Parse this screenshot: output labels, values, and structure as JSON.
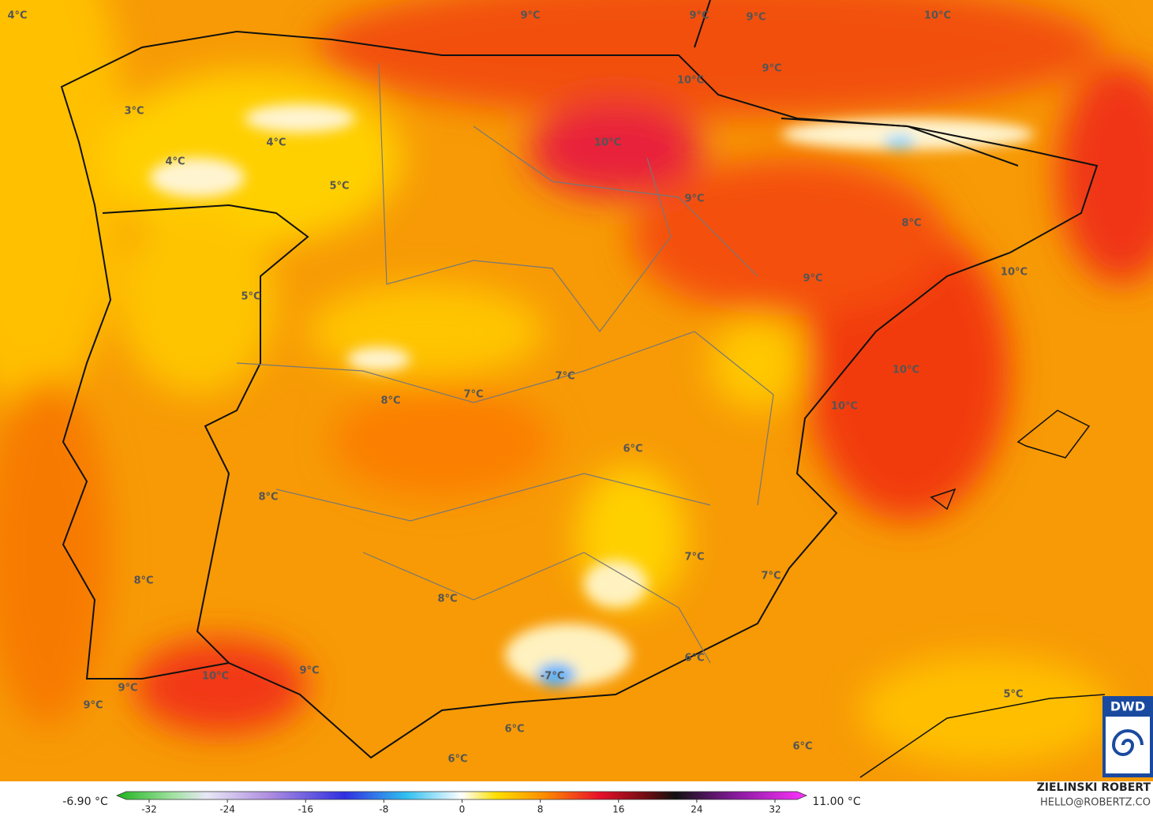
{
  "map": {
    "labels": [
      "4°C",
      "9°C",
      "9°C",
      "9°C",
      "10°C",
      "9°C",
      "10°C",
      "3°C",
      "10°C",
      "4°C",
      "4°C",
      "5°C",
      "9°C",
      "8°C",
      "10°C",
      "9°C",
      "5°C",
      "10°C",
      "7°C",
      "7°C",
      "8°C",
      "10°C",
      "6°C",
      "8°C",
      "7°C",
      "7°C",
      "8°C",
      "8°C",
      "6°C",
      "9°C",
      "10°C",
      "-7°C",
      "9°C",
      "5°C",
      "9°C",
      "6°C",
      "6°C",
      "6°C"
    ]
  },
  "colorbar": {
    "min_label": "-6.90 °C",
    "max_label": "11.00 °C",
    "ticks": [
      -32,
      -24,
      -16,
      -8,
      0,
      8,
      16,
      24,
      32
    ]
  },
  "credit": {
    "name": "ZIELINSKI ROBERT",
    "email": "HELLO@ROBERTZ.CO",
    "logo": "DWD"
  }
}
